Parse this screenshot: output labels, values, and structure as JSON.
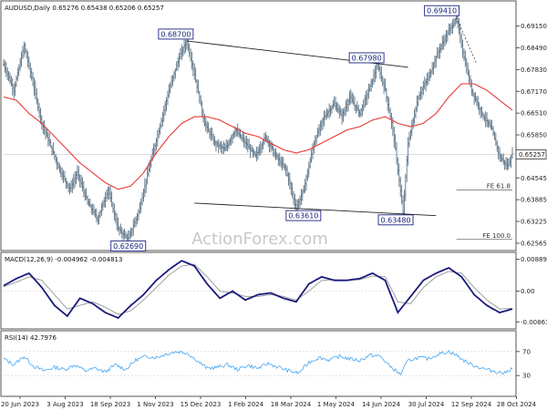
{
  "price": {
    "title": "AUDUSD,Daily 0.65276 0.65438 0.65206 0.65257",
    "current_label": "0.65257",
    "y_ticks": [
      0.6915,
      0.6849,
      0.6783,
      0.6717,
      0.6651,
      0.6585,
      0.64545,
      0.63885,
      0.63225,
      0.62565
    ],
    "ylim": [
      0.6248,
      0.6972
    ]
  },
  "annotations": {
    "high1": {
      "text": "0.68700",
      "date": "2023-12-28",
      "value": 0.687
    },
    "low1": {
      "text": "0.62690",
      "date": "2023-10-26",
      "value": 0.6269
    },
    "mid_high": {
      "text": "0.67980",
      "date": "2024-05-16",
      "value": 0.6798
    },
    "low2": {
      "text": "0.63610",
      "date": "2024-04-19",
      "value": 0.6361
    },
    "low3": {
      "text": "0.63480",
      "date": "2024-08-05",
      "value": 0.6348
    },
    "high2": {
      "text": "0.69410",
      "date": "2024-09-30",
      "value": 0.6941
    },
    "fe618": {
      "text": "FE 61.8",
      "value": 0.6418
    },
    "fe100": {
      "text": "FE 100.0",
      "value": 0.6268
    }
  },
  "macd": {
    "title": "MACD(12,26,9) -0.004962 -0.004813",
    "y_ticks": [
      {
        "label": "0.008899",
        "value": 0.008899
      },
      {
        "label": "0.00",
        "value": 0.0
      },
      {
        "label": "-0.008612",
        "value": -0.008612
      }
    ],
    "ylim": [
      -0.0098,
      0.0098
    ]
  },
  "rsi": {
    "title": "RSI(14) 42.7976",
    "y_ticks": [
      {
        "label": "70",
        "value": 70
      },
      {
        "label": "30",
        "value": 30
      }
    ],
    "ylim": [
      0,
      100
    ]
  },
  "x_labels": [
    "20 Jun 2023",
    "3 Aug 2023",
    "18 Sep 2023",
    "1 Nov 2023",
    "15 Dec 2023",
    "1 Feb 2024",
    "18 Mar 2024",
    "1 May 2024",
    "14 Jun 2024",
    "30 Jul 2024",
    "12 Sep 2024",
    "28 Oct 2024"
  ],
  "watermark": "ActionForex.com",
  "colors": {
    "candle": "#5b7386",
    "ma": "#e53935",
    "macd": "#1a1a7e",
    "signal": "#9e9e9e",
    "rsi": "#42a5f5",
    "annotation_box": "#1a237e"
  },
  "chart_data": [
    {
      "type": "line",
      "title": "AUDUSD,Daily 0.65276 0.65438 0.65206 0.65257",
      "series": [
        {
          "values": [
            [
              0,
              0.68
            ],
            [
              8,
              0.672
            ],
            [
              16,
              0.6855
            ],
            [
              22,
              0.676
            ],
            [
              30,
              0.662
            ],
            [
              38,
              0.654
            ],
            [
              44,
              0.648
            ],
            [
              52,
              0.642
            ],
            [
              58,
              0.647
            ],
            [
              66,
              0.638
            ],
            [
              74,
              0.633
            ],
            [
              82,
              0.642
            ],
            [
              90,
              0.63
            ],
            [
              98,
              0.6269
            ],
            [
              106,
              0.635
            ],
            [
              114,
              0.648
            ],
            [
              122,
              0.66
            ],
            [
              130,
              0.672
            ],
            [
              138,
              0.682
            ],
            [
              144,
              0.687
            ],
            [
              150,
              0.677
            ],
            [
              158,
              0.662
            ],
            [
              166,
              0.656
            ],
            [
              174,
              0.654
            ],
            [
              182,
              0.66
            ],
            [
              190,
              0.656
            ],
            [
              198,
              0.652
            ],
            [
              206,
              0.658
            ],
            [
              214,
              0.652
            ],
            [
              222,
              0.648
            ],
            [
              230,
              0.6361
            ],
            [
              236,
              0.642
            ],
            [
              244,
              0.656
            ],
            [
              252,
              0.664
            ],
            [
              260,
              0.668
            ],
            [
              266,
              0.664
            ],
            [
              272,
              0.67
            ],
            [
              280,
              0.665
            ],
            [
              288,
              0.673
            ],
            [
              294,
              0.6798
            ],
            [
              300,
              0.672
            ],
            [
              306,
              0.66
            ],
            [
              310,
              0.648
            ],
            [
              314,
              0.6348
            ],
            [
              318,
              0.656
            ],
            [
              326,
              0.67
            ],
            [
              334,
              0.676
            ],
            [
              342,
              0.684
            ],
            [
              350,
              0.69
            ],
            [
              356,
              0.6941
            ],
            [
              362,
              0.682
            ],
            [
              368,
              0.672
            ],
            [
              376,
              0.665
            ],
            [
              384,
              0.66
            ],
            [
              390,
              0.652
            ],
            [
              396,
              0.649
            ],
            [
              400,
              0.6526
            ]
          ]
        },
        {
          "values": [
            [
              0,
              0.67
            ],
            [
              10,
              0.669
            ],
            [
              20,
              0.665
            ],
            [
              30,
              0.662
            ],
            [
              40,
              0.658
            ],
            [
              50,
              0.654
            ],
            [
              60,
              0.65
            ],
            [
              70,
              0.647
            ],
            [
              80,
              0.644
            ],
            [
              90,
              0.642
            ],
            [
              100,
              0.643
            ],
            [
              110,
              0.647
            ],
            [
              120,
              0.653
            ],
            [
              130,
              0.658
            ],
            [
              140,
              0.662
            ],
            [
              150,
              0.664
            ],
            [
              160,
              0.664
            ],
            [
              170,
              0.663
            ],
            [
              180,
              0.661
            ],
            [
              190,
              0.659
            ],
            [
              200,
              0.658
            ],
            [
              210,
              0.656
            ],
            [
              220,
              0.654
            ],
            [
              230,
              0.653
            ],
            [
              240,
              0.654
            ],
            [
              250,
              0.656
            ],
            [
              260,
              0.658
            ],
            [
              270,
              0.66
            ],
            [
              280,
              0.661
            ],
            [
              290,
              0.663
            ],
            [
              300,
              0.664
            ],
            [
              310,
              0.662
            ],
            [
              320,
              0.661
            ],
            [
              330,
              0.662
            ],
            [
              340,
              0.665
            ],
            [
              350,
              0.67
            ],
            [
              360,
              0.674
            ],
            [
              370,
              0.674
            ],
            [
              380,
              0.672
            ],
            [
              390,
              0.669
            ],
            [
              400,
              0.666
            ]
          ]
        }
      ]
    },
    {
      "type": "line",
      "title": "MACD(12,26,9) -0.004962 -0.004813",
      "series": [
        {
          "values": [
            [
              0,
              0.0015
            ],
            [
              10,
              0.0035
            ],
            [
              20,
              0.005
            ],
            [
              30,
              0.001
            ],
            [
              40,
              -0.004
            ],
            [
              50,
              -0.007
            ],
            [
              60,
              -0.002
            ],
            [
              70,
              -0.0035
            ],
            [
              80,
              -0.006
            ],
            [
              90,
              -0.0075
            ],
            [
              100,
              -0.004
            ],
            [
              110,
              -0.001
            ],
            [
              120,
              0.003
            ],
            [
              130,
              0.006
            ],
            [
              140,
              0.0085
            ],
            [
              150,
              0.007
            ],
            [
              160,
              0.002
            ],
            [
              170,
              -0.002
            ],
            [
              180,
              0.0
            ],
            [
              190,
              -0.0025
            ],
            [
              200,
              -0.001
            ],
            [
              210,
              -0.0005
            ],
            [
              220,
              -0.002
            ],
            [
              230,
              -0.003
            ],
            [
              240,
              0.002
            ],
            [
              250,
              0.004
            ],
            [
              260,
              0.003
            ],
            [
              270,
              0.003
            ],
            [
              280,
              0.0035
            ],
            [
              290,
              0.005
            ],
            [
              300,
              0.003
            ],
            [
              310,
              -0.006
            ],
            [
              320,
              -0.0015
            ],
            [
              330,
              0.003
            ],
            [
              340,
              0.005
            ],
            [
              350,
              0.0065
            ],
            [
              360,
              0.004
            ],
            [
              370,
              -0.001
            ],
            [
              380,
              -0.004
            ],
            [
              390,
              -0.006
            ],
            [
              400,
              -0.005
            ]
          ]
        },
        {
          "values": [
            [
              0,
              0.0012
            ],
            [
              10,
              0.0025
            ],
            [
              20,
              0.004
            ],
            [
              30,
              0.003
            ],
            [
              40,
              -0.001
            ],
            [
              50,
              -0.005
            ],
            [
              60,
              -0.004
            ],
            [
              70,
              -0.003
            ],
            [
              80,
              -0.0045
            ],
            [
              90,
              -0.0065
            ],
            [
              100,
              -0.0055
            ],
            [
              110,
              -0.0025
            ],
            [
              120,
              0.001
            ],
            [
              130,
              0.0045
            ],
            [
              140,
              0.007
            ],
            [
              150,
              0.0075
            ],
            [
              160,
              0.004
            ],
            [
              170,
              0.0
            ],
            [
              180,
              -0.0005
            ],
            [
              190,
              -0.0015
            ],
            [
              200,
              -0.0015
            ],
            [
              210,
              -0.001
            ],
            [
              220,
              -0.0015
            ],
            [
              230,
              -0.0025
            ],
            [
              240,
              0.0
            ],
            [
              250,
              0.003
            ],
            [
              260,
              0.0032
            ],
            [
              270,
              0.003
            ],
            [
              280,
              0.0032
            ],
            [
              290,
              0.0042
            ],
            [
              300,
              0.004
            ],
            [
              310,
              -0.003
            ],
            [
              320,
              -0.0035
            ],
            [
              330,
              0.001
            ],
            [
              340,
              0.004
            ],
            [
              350,
              0.0055
            ],
            [
              360,
              0.005
            ],
            [
              370,
              0.001
            ],
            [
              380,
              -0.0025
            ],
            [
              390,
              -0.005
            ],
            [
              400,
              -0.0048
            ]
          ]
        }
      ]
    },
    {
      "type": "line",
      "title": "RSI(14) 42.7976",
      "series": [
        {
          "values": [
            [
              0,
              58
            ],
            [
              8,
              48
            ],
            [
              16,
              62
            ],
            [
              24,
              45
            ],
            [
              32,
              38
            ],
            [
              40,
              44
            ],
            [
              48,
              40
            ],
            [
              56,
              48
            ],
            [
              64,
              38
            ],
            [
              72,
              42
            ],
            [
              80,
              36
            ],
            [
              88,
              48
            ],
            [
              96,
              40
            ],
            [
              104,
              56
            ],
            [
              112,
              62
            ],
            [
              120,
              60
            ],
            [
              128,
              66
            ],
            [
              136,
              70
            ],
            [
              144,
              68
            ],
            [
              152,
              55
            ],
            [
              160,
              42
            ],
            [
              168,
              44
            ],
            [
              176,
              48
            ],
            [
              184,
              40
            ],
            [
              192,
              47
            ],
            [
              200,
              42
            ],
            [
              208,
              50
            ],
            [
              216,
              44
            ],
            [
              224,
              38
            ],
            [
              232,
              34
            ],
            [
              240,
              52
            ],
            [
              248,
              60
            ],
            [
              256,
              56
            ],
            [
              264,
              62
            ],
            [
              272,
              58
            ],
            [
              280,
              55
            ],
            [
              288,
              64
            ],
            [
              296,
              62
            ],
            [
              304,
              45
            ],
            [
              312,
              32
            ],
            [
              318,
              55
            ],
            [
              326,
              60
            ],
            [
              334,
              58
            ],
            [
              342,
              66
            ],
            [
              350,
              70
            ],
            [
              356,
              64
            ],
            [
              364,
              52
            ],
            [
              372,
              45
            ],
            [
              380,
              40
            ],
            [
              388,
              36
            ],
            [
              394,
              34
            ],
            [
              400,
              43
            ]
          ]
        }
      ]
    }
  ]
}
